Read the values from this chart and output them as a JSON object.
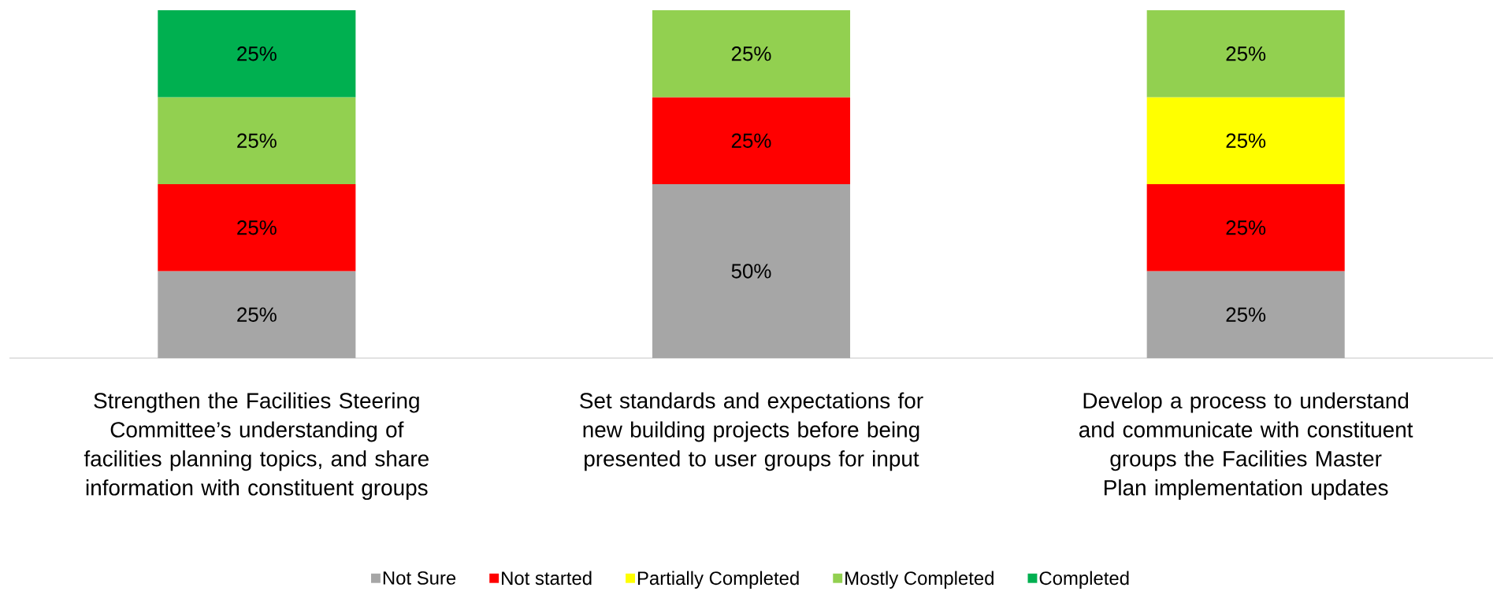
{
  "chart_data": {
    "type": "bar",
    "stacked": true,
    "categories": [
      "Strengthen the Facilities Steering Committee’s understanding of facilities planning topics, and share information with constituent groups",
      "Set standards and expectations for new building projects before being presented to user groups for input",
      "Develop a process to understand and communicate with constituent groups the Facilities Master Plan implementation updates"
    ],
    "series": [
      {
        "name": "Not Sure",
        "color": "#a6a6a6",
        "values": [
          25,
          50,
          25
        ],
        "value_labels": [
          "25%",
          "50%",
          "25%"
        ]
      },
      {
        "name": "Not started",
        "color": "#ff0000",
        "values": [
          25,
          25,
          25
        ],
        "value_labels": [
          "25%",
          "25%",
          "25%"
        ]
      },
      {
        "name": "Partially Completed",
        "color": "#ffff00",
        "values": [
          null,
          null,
          25
        ],
        "value_labels": [
          null,
          null,
          "25%"
        ]
      },
      {
        "name": "Mostly Completed",
        "color": "#92d050",
        "values": [
          25,
          25,
          25
        ],
        "value_labels": [
          "25%",
          "25%",
          "25%"
        ]
      },
      {
        "name": "Completed",
        "color": "#00b050",
        "values": [
          25,
          null,
          null
        ],
        "value_labels": [
          "25%",
          null,
          null
        ]
      }
    ],
    "legend": "bottom"
  }
}
